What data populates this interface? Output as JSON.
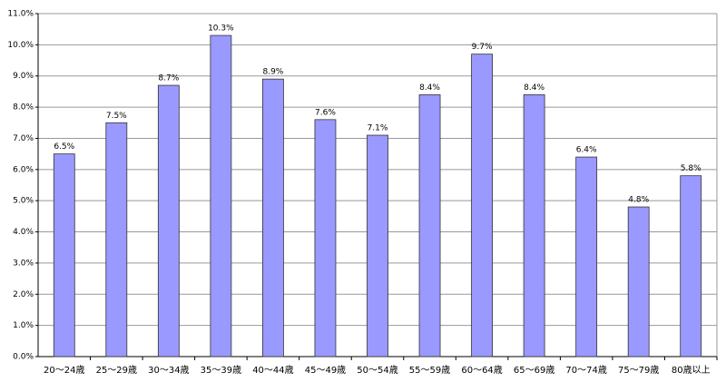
{
  "chart_data": {
    "type": "bar",
    "categories": [
      "20～24歳",
      "25～29歳",
      "30～34歳",
      "35～39歳",
      "40～44歳",
      "45～49歳",
      "50～54歳",
      "55～59歳",
      "60～64歳",
      "65～69歳",
      "70～74歳",
      "75～79歳",
      "80歳以上"
    ],
    "values": [
      6.5,
      7.5,
      8.7,
      10.3,
      8.9,
      7.6,
      7.1,
      8.4,
      9.7,
      8.4,
      6.4,
      4.8,
      5.8
    ],
    "value_labels": [
      "6.5%",
      "7.5%",
      "8.7%",
      "10.3%",
      "8.9%",
      "7.6%",
      "7.1%",
      "8.4%",
      "9.7%",
      "8.4%",
      "6.4%",
      "4.8%",
      "5.8%"
    ],
    "color": "#9999ff",
    "ylim": [
      0,
      11
    ],
    "yticks": [
      {
        "value": 0,
        "label": "0.0%"
      },
      {
        "value": 1,
        "label": "1.0%"
      },
      {
        "value": 2,
        "label": "2.0%"
      },
      {
        "value": 3,
        "label": "3.0%"
      },
      {
        "value": 4,
        "label": "4.0%"
      },
      {
        "value": 5,
        "label": "5.0%"
      },
      {
        "value": 6,
        "label": "6.0%"
      },
      {
        "value": 7,
        "label": "7.0%"
      },
      {
        "value": 8,
        "label": "8.0%"
      },
      {
        "value": 9,
        "label": "9.0%"
      },
      {
        "value": 10,
        "label": "10.0%"
      },
      {
        "value": 11,
        "label": "11.0%"
      }
    ],
    "grid": true
  }
}
